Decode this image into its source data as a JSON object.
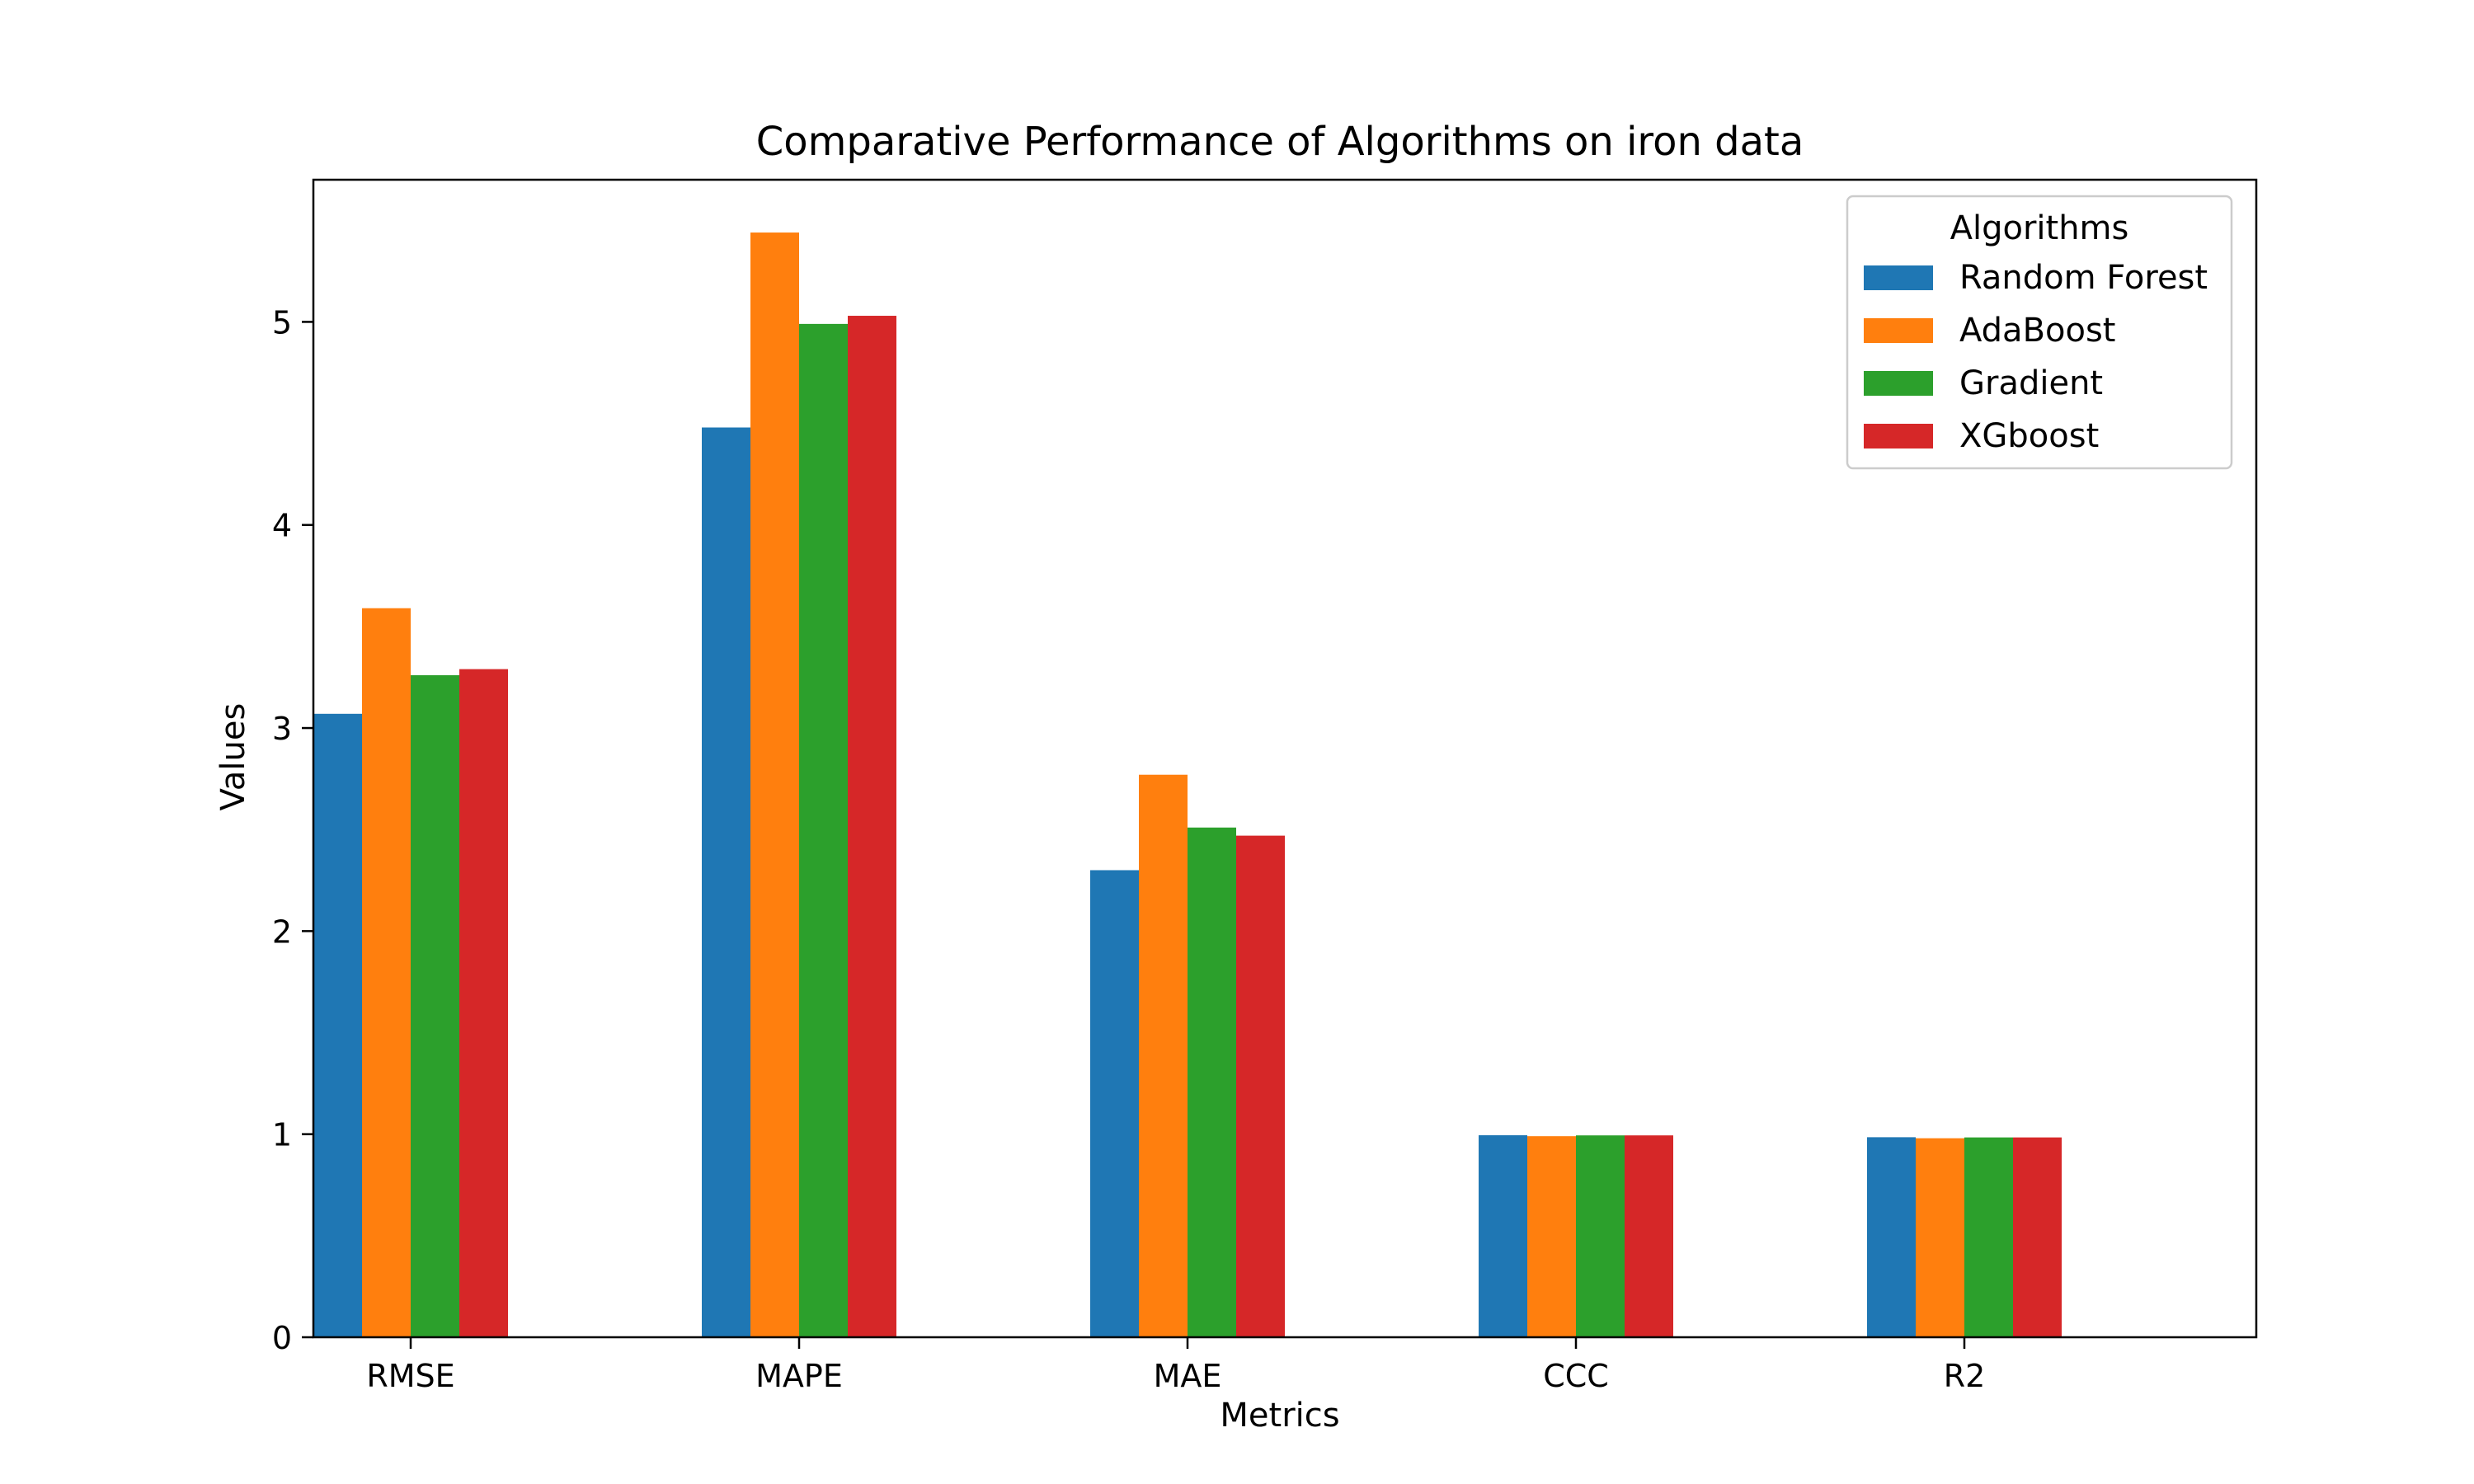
{
  "chart_data": {
    "type": "bar",
    "title": "Comparative Performance of Algorithms on iron data",
    "xlabel": "Metrics",
    "ylabel": "Values",
    "categories": [
      "RMSE",
      "MAPE",
      "MAE",
      "CCC",
      "R2"
    ],
    "ylim": [
      0,
      5.7
    ],
    "yticks": [
      "0",
      "1",
      "2",
      "3",
      "4",
      "5"
    ],
    "grid": false,
    "legend": {
      "title": "Algorithms",
      "placement": "top-right"
    },
    "series": [
      {
        "name": "Random Forest",
        "color": "#1f77b4",
        "values": [
          3.07,
          4.48,
          2.3,
          0.995,
          0.985
        ]
      },
      {
        "name": "AdaBoost",
        "color": "#ff7f0e",
        "values": [
          3.59,
          5.44,
          2.77,
          0.99,
          0.98
        ]
      },
      {
        "name": "Gradient",
        "color": "#2ca02c",
        "values": [
          3.26,
          4.99,
          2.51,
          0.994,
          0.984
        ]
      },
      {
        "name": "XGboost",
        "color": "#d62728",
        "values": [
          3.29,
          5.03,
          2.47,
          0.994,
          0.984
        ]
      }
    ]
  }
}
